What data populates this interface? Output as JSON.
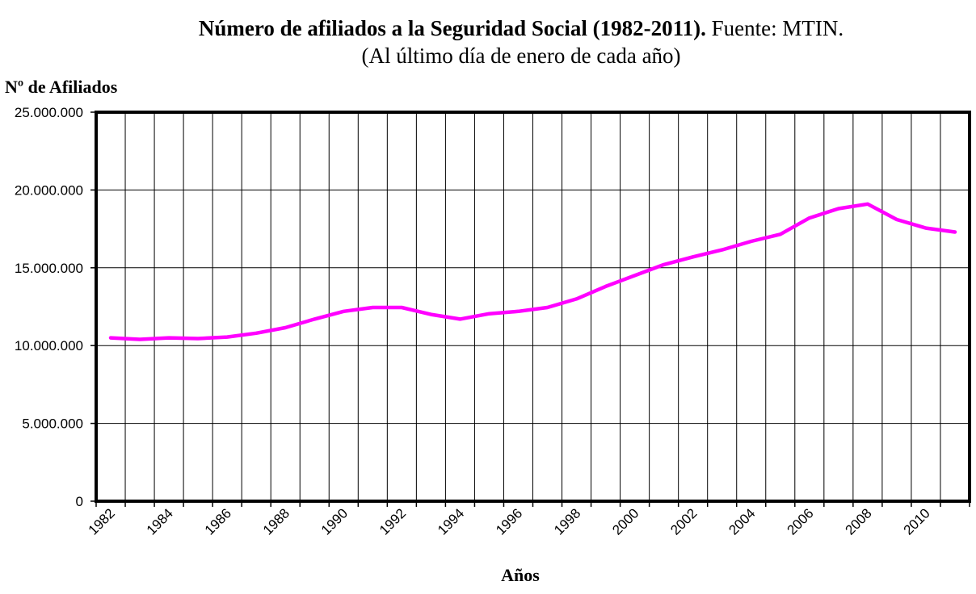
{
  "title_bold": "Número de afiliados a la Seguridad Social (1982-2011).",
  "title_source": "Fuente: MTIN.",
  "subtitle": "(Al último día de enero de cada año)",
  "chart_data": {
    "type": "line",
    "title": "Número de afiliados a la Seguridad Social (1982-2011). Fuente: MTIN.",
    "subtitle": "(Al último día de enero de cada año)",
    "xlabel": "Años",
    "ylabel": "Nº de Afiliados",
    "x": [
      1982,
      1983,
      1984,
      1985,
      1986,
      1987,
      1988,
      1989,
      1990,
      1991,
      1992,
      1993,
      1994,
      1995,
      1996,
      1997,
      1998,
      1999,
      2000,
      2001,
      2002,
      2003,
      2004,
      2005,
      2006,
      2007,
      2008,
      2009,
      2010,
      2011
    ],
    "x_tick_labels": [
      "1982",
      "1984",
      "1986",
      "1988",
      "1990",
      "1992",
      "1994",
      "1996",
      "1998",
      "2000",
      "2002",
      "2004",
      "2006",
      "2008",
      "2010"
    ],
    "y_tick_labels": [
      "0",
      "5.000.000",
      "10.000.000",
      "15.000.000",
      "20.000.000",
      "25.000.000"
    ],
    "ylim": [
      0,
      25000000
    ],
    "grid": true,
    "series": [
      {
        "values": [
          10500000,
          10400000,
          10500000,
          10450000,
          10550000,
          10800000,
          11150000,
          11700000,
          12200000,
          12450000,
          12450000,
          12000000,
          11700000,
          12050000,
          12200000,
          12450000,
          13000000,
          13800000,
          14500000,
          15200000,
          15700000,
          16150000,
          16700000,
          17150000,
          18200000,
          18800000,
          19100000,
          18100000,
          17550000,
          17300000
        ],
        "color": "#ff00ff"
      }
    ]
  }
}
